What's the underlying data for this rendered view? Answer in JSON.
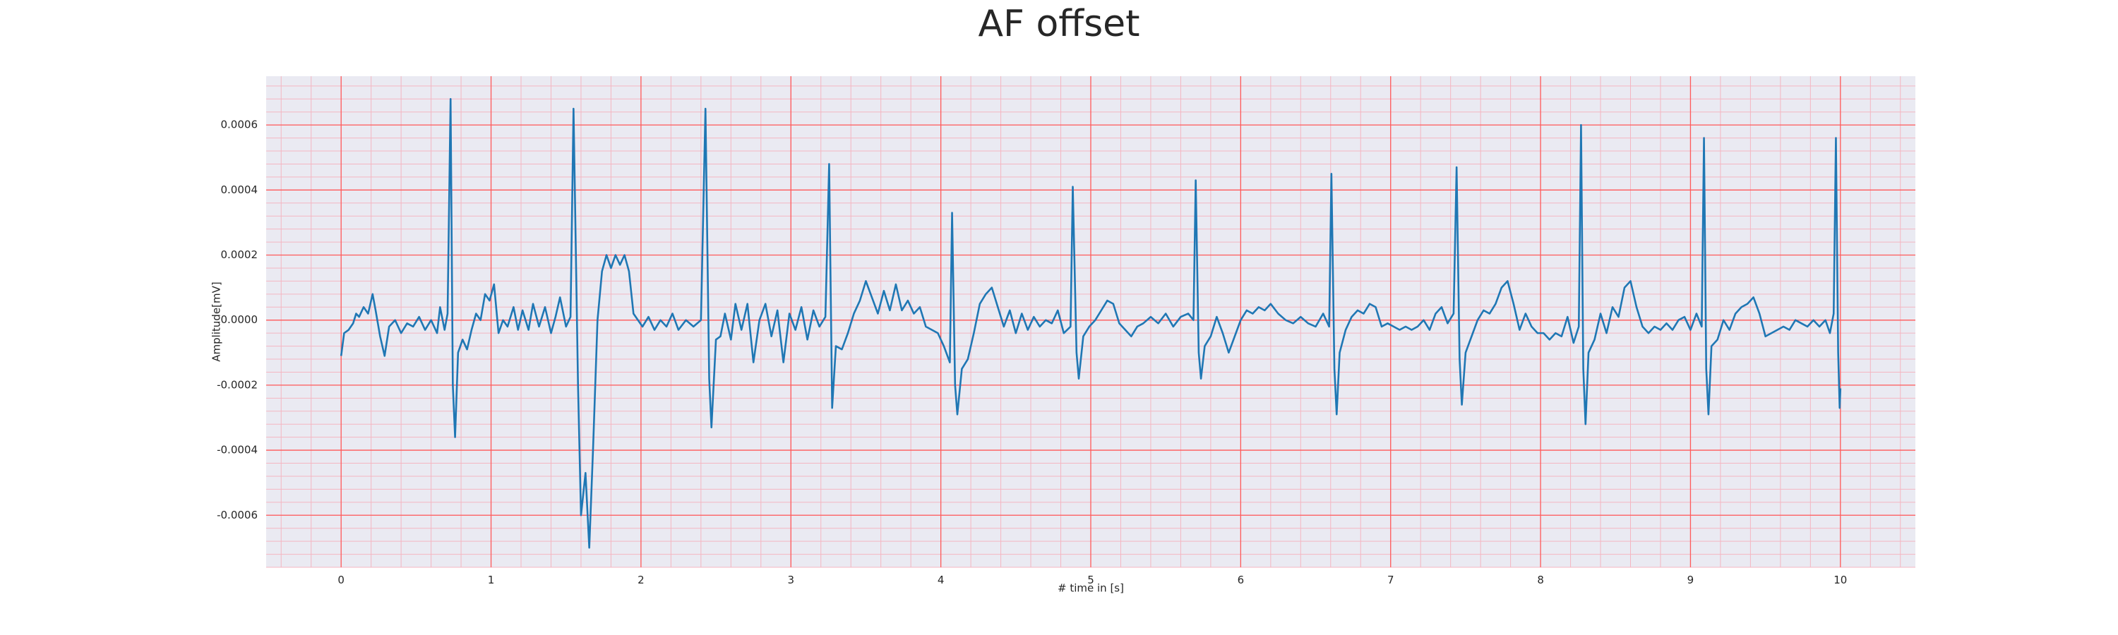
{
  "chart_data": {
    "type": "line",
    "title": "AF offset",
    "xlabel": "# time in [s]",
    "ylabel": "Amplitude[mV]",
    "xlim": [
      -0.5,
      10.5
    ],
    "xticks": [
      0,
      1,
      2,
      3,
      4,
      5,
      6,
      7,
      8,
      9,
      10
    ],
    "ylim": [
      -0.00076,
      0.00075
    ],
    "yticks": [
      {
        "value": -0.0006,
        "label": "-0.0006"
      },
      {
        "value": -0.0004,
        "label": "-0.0004"
      },
      {
        "value": -0.0002,
        "label": "-0.0002"
      },
      {
        "value": 0,
        "label": "0.0000"
      },
      0.0002,
      0.0004,
      0.0006
    ],
    "grid": true,
    "minor_grid": true,
    "grid_color": "#ff5a5a",
    "minor_grid_color": "#f4b6c2",
    "background": "#eaeaf2",
    "x": [
      0,
      0.02,
      0.05,
      0.08,
      0.1,
      0.12,
      0.15,
      0.18,
      0.21,
      0.23,
      0.26,
      0.29,
      0.32,
      0.36,
      0.4,
      0.44,
      0.48,
      0.52,
      0.56,
      0.6,
      0.64,
      0.66,
      0.69,
      0.71,
      0.73,
      0.745,
      0.76,
      0.78,
      0.81,
      0.84,
      0.87,
      0.9,
      0.93,
      0.96,
      0.99,
      1.02,
      1.05,
      1.08,
      1.11,
      1.15,
      1.18,
      1.21,
      1.25,
      1.28,
      1.32,
      1.36,
      1.4,
      1.43,
      1.46,
      1.5,
      1.53,
      1.55,
      1.58,
      1.6,
      1.63,
      1.655,
      1.68,
      1.71,
      1.74,
      1.77,
      1.8,
      1.83,
      1.86,
      1.89,
      1.92,
      1.95,
      1.98,
      2.01,
      2.05,
      2.09,
      2.13,
      2.17,
      2.21,
      2.25,
      2.3,
      2.35,
      2.4,
      2.43,
      2.455,
      2.47,
      2.5,
      2.53,
      2.56,
      2.6,
      2.63,
      2.67,
      2.71,
      2.75,
      2.79,
      2.83,
      2.87,
      2.91,
      2.95,
      2.99,
      3.03,
      3.07,
      3.11,
      3.15,
      3.19,
      3.23,
      3.255,
      3.275,
      3.3,
      3.34,
      3.38,
      3.42,
      3.46,
      3.5,
      3.54,
      3.58,
      3.62,
      3.66,
      3.7,
      3.74,
      3.78,
      3.82,
      3.86,
      3.9,
      3.94,
      3.98,
      4.02,
      4.06,
      4.075,
      4.095,
      4.11,
      4.14,
      4.18,
      4.22,
      4.26,
      4.3,
      4.34,
      4.38,
      4.42,
      4.46,
      4.5,
      4.54,
      4.58,
      4.62,
      4.66,
      4.7,
      4.74,
      4.78,
      4.82,
      4.865,
      4.88,
      4.905,
      4.92,
      4.95,
      4.99,
      5.03,
      5.07,
      5.11,
      5.15,
      5.19,
      5.23,
      5.27,
      5.31,
      5.35,
      5.4,
      5.45,
      5.5,
      5.55,
      5.6,
      5.65,
      5.685,
      5.7,
      5.72,
      5.735,
      5.76,
      5.8,
      5.84,
      5.88,
      5.92,
      5.96,
      6.0,
      6.04,
      6.08,
      6.12,
      6.16,
      6.2,
      6.25,
      6.3,
      6.35,
      6.4,
      6.45,
      6.5,
      6.55,
      6.59,
      6.605,
      6.625,
      6.64,
      6.66,
      6.7,
      6.74,
      6.78,
      6.82,
      6.86,
      6.9,
      6.94,
      6.98,
      7.02,
      7.06,
      7.1,
      7.14,
      7.18,
      7.22,
      7.26,
      7.3,
      7.34,
      7.38,
      7.42,
      7.44,
      7.46,
      7.475,
      7.5,
      7.54,
      7.58,
      7.62,
      7.66,
      7.7,
      7.74,
      7.78,
      7.82,
      7.86,
      7.9,
      7.94,
      7.98,
      8.02,
      8.06,
      8.1,
      8.14,
      8.18,
      8.22,
      8.255,
      8.27,
      8.285,
      8.3,
      8.32,
      8.36,
      8.4,
      8.44,
      8.48,
      8.52,
      8.56,
      8.6,
      8.64,
      8.68,
      8.72,
      8.76,
      8.8,
      8.84,
      8.88,
      8.92,
      8.96,
      9.0,
      9.04,
      9.075,
      9.09,
      9.105,
      9.12,
      9.14,
      9.18,
      9.22,
      9.26,
      9.3,
      9.34,
      9.38,
      9.42,
      9.46,
      9.5,
      9.54,
      9.58,
      9.62,
      9.66,
      9.7,
      9.74,
      9.78,
      9.82,
      9.86,
      9.9,
      9.93,
      9.955,
      9.97,
      9.985,
      9.995,
      10.0
    ],
    "series": [
      {
        "color": "#1f77b4",
        "values": [
          -0.00011,
          -4e-05,
          -3e-05,
          -1e-05,
          2e-05,
          1e-05,
          4e-05,
          2e-05,
          8e-05,
          3e-05,
          -5e-05,
          -0.00011,
          -2e-05,
          0,
          -4e-05,
          -1e-05,
          -2e-05,
          1e-05,
          -3e-05,
          0,
          -4e-05,
          4e-05,
          -3e-05,
          2e-05,
          0.00068,
          -0.0002,
          -0.00036,
          -0.0001,
          -6e-05,
          -9e-05,
          -3e-05,
          2e-05,
          0,
          8e-05,
          6e-05,
          0.00011,
          -4e-05,
          0,
          -2e-05,
          4e-05,
          -3e-05,
          3e-05,
          -3e-05,
          5e-05,
          -2e-05,
          4e-05,
          -4e-05,
          1e-05,
          7e-05,
          -2e-05,
          1e-05,
          0.00065,
          -0.0002,
          -0.0006,
          -0.00047,
          -0.0007,
          -0.0004,
          0,
          0.00015,
          0.0002,
          0.00016,
          0.0002,
          0.00017,
          0.0002,
          0.00015,
          2e-05,
          0,
          -2e-05,
          1e-05,
          -3e-05,
          0,
          -2e-05,
          2e-05,
          -3e-05,
          0,
          -2e-05,
          0,
          0.00065,
          -0.00018,
          -0.00033,
          -6e-05,
          -5e-05,
          2e-05,
          -6e-05,
          5e-05,
          -3e-05,
          5e-05,
          -0.00013,
          0,
          5e-05,
          -5e-05,
          3e-05,
          -0.00013,
          2e-05,
          -3e-05,
          4e-05,
          -6e-05,
          3e-05,
          -2e-05,
          1e-05,
          0.00048,
          -0.00027,
          -8e-05,
          -9e-05,
          -4e-05,
          2e-05,
          6e-05,
          0.00012,
          7e-05,
          2e-05,
          9e-05,
          3e-05,
          0.00011,
          3e-05,
          6e-05,
          2e-05,
          4e-05,
          -2e-05,
          -3e-05,
          -4e-05,
          -8e-05,
          -0.00013,
          0.00033,
          -0.0002,
          -0.00029,
          -0.00015,
          -0.00012,
          -4e-05,
          5e-05,
          8e-05,
          0.0001,
          4e-05,
          -2e-05,
          3e-05,
          -4e-05,
          2e-05,
          -3e-05,
          1e-05,
          -2e-05,
          0,
          -1e-05,
          3e-05,
          -4e-05,
          -2e-05,
          0.00041,
          -0.0001,
          -0.00018,
          -5e-05,
          -2e-05,
          0,
          3e-05,
          6e-05,
          5e-05,
          -1e-05,
          -3e-05,
          -5e-05,
          -2e-05,
          -1e-05,
          1e-05,
          -1e-05,
          2e-05,
          -2e-05,
          1e-05,
          2e-05,
          0,
          0.00043,
          -0.0001,
          -0.00018,
          -8e-05,
          -5e-05,
          1e-05,
          -4e-05,
          -0.0001,
          -5e-05,
          0,
          3e-05,
          2e-05,
          4e-05,
          3e-05,
          5e-05,
          2e-05,
          0,
          -1e-05,
          1e-05,
          -1e-05,
          -2e-05,
          2e-05,
          -2e-05,
          0.00045,
          -0.00015,
          -0.00029,
          -0.0001,
          -3e-05,
          1e-05,
          3e-05,
          2e-05,
          5e-05,
          4e-05,
          -2e-05,
          -1e-05,
          -2e-05,
          -3e-05,
          -2e-05,
          -3e-05,
          -2e-05,
          0,
          -3e-05,
          2e-05,
          4e-05,
          -1e-05,
          2e-05,
          0.00047,
          -0.00012,
          -0.00026,
          -0.0001,
          -5e-05,
          0,
          3e-05,
          2e-05,
          5e-05,
          0.0001,
          0.00012,
          5e-05,
          -3e-05,
          2e-05,
          -2e-05,
          -4e-05,
          -4e-05,
          -6e-05,
          -4e-05,
          -5e-05,
          1e-05,
          -7e-05,
          -2e-05,
          0.0006,
          -0.00015,
          -0.00032,
          -0.0001,
          -6e-05,
          2e-05,
          -4e-05,
          4e-05,
          1e-05,
          0.0001,
          0.00012,
          4e-05,
          -2e-05,
          -4e-05,
          -2e-05,
          -3e-05,
          -1e-05,
          -3e-05,
          0,
          1e-05,
          -3e-05,
          2e-05,
          -2e-05,
          0.00056,
          -0.00015,
          -0.00029,
          -8e-05,
          -6e-05,
          0,
          -3e-05,
          2e-05,
          4e-05,
          5e-05,
          7e-05,
          2e-05,
          -5e-05,
          -4e-05,
          -3e-05,
          -2e-05,
          -3e-05,
          0,
          -1e-05,
          -2e-05,
          0,
          -2e-05,
          0,
          -4e-05,
          2e-05,
          0.00056,
          -0.0001,
          -0.00027,
          -0.00021
        ]
      }
    ]
  }
}
